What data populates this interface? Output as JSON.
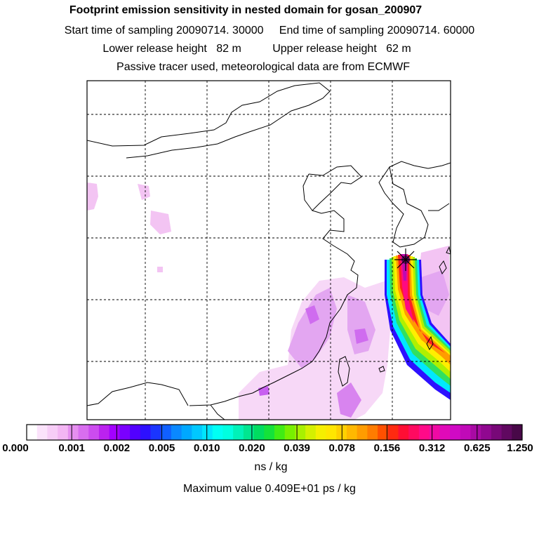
{
  "header": {
    "title": "Footprint emission sensitivity in nested domain for gosan_200907",
    "sampling": "Start time of sampling 20090714. 30000     End time of sampling 20090714. 60000",
    "release": "Lower release height   82 m          Upper release height   62 m",
    "tracer": "Passive tracer used, meteorological data are from ECMWF"
  },
  "colorbar": {
    "unit": "ns / kg",
    "tick_labels": [
      "0.000",
      "0.001",
      "0.002",
      "0.005",
      "0.010",
      "0.020",
      "0.039",
      "0.078",
      "0.156",
      "0.312",
      "0.625",
      "1.250"
    ],
    "colors": [
      "#ffffff",
      "#fbe3fb",
      "#f7cdf7",
      "#f3b6f3",
      "#e58fef",
      "#d86eef",
      "#cc4cef",
      "#bb22ef",
      "#a300ff",
      "#7a00ff",
      "#5200ff",
      "#2d10ff",
      "#1a35ff",
      "#1060ff",
      "#0a88ff",
      "#00a8ff",
      "#00c8ff",
      "#00e4ff",
      "#00fff4",
      "#00ffe0",
      "#00f2b8",
      "#00e690",
      "#00dc60",
      "#14e23a",
      "#40ec14",
      "#78f000",
      "#a8f000",
      "#d4f000",
      "#f5ef00",
      "#ffe600",
      "#ffd000",
      "#ffb800",
      "#ff9c00",
      "#ff7c00",
      "#ff5000",
      "#ff2a10",
      "#ff0e34",
      "#ff0a60",
      "#ff0a88",
      "#f00aa4",
      "#e00ab8",
      "#d00ac4",
      "#c00ab8",
      "#a80aa4",
      "#900890",
      "#780878",
      "#600860",
      "#480848"
    ]
  },
  "footer": {
    "max_value": "Maximum value  0.409E+01 ps / kg"
  },
  "map": {
    "receptor_icon": "star-marker-icon",
    "land_color": "#ffffff",
    "plume_colors": [
      "#f0c0f8",
      "#dd90f0",
      "#c860f0",
      "#00e8ff",
      "#30e060",
      "#b0f000",
      "#ffee00",
      "#ff9c00",
      "#ff2020",
      "#ff0a80",
      "#c00ab0",
      "#1a35ff"
    ]
  }
}
